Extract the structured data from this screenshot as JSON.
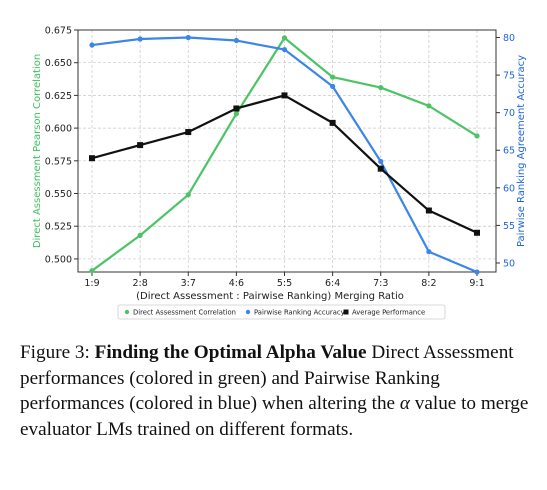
{
  "chart_data": {
    "type": "line",
    "categories": [
      "1:9",
      "2:8",
      "3:7",
      "4:6",
      "5:5",
      "6:4",
      "7:3",
      "8:2",
      "9:1"
    ],
    "xlabel": "(Direct Assessment : Pairwise Ranking) Merging Ratio",
    "ylabel_left": "Direct Assessment Pearson Correlation",
    "ylabel_right": "Pairwise Ranking Agreement Accuracy",
    "ylim_left": [
      0.49,
      0.675
    ],
    "ylim_right": [
      48.8,
      81.0
    ],
    "yticks_left": [
      "0.500",
      "0.525",
      "0.550",
      "0.575",
      "0.600",
      "0.625",
      "0.650",
      "0.675"
    ],
    "yticks_right": [
      "50",
      "55",
      "60",
      "65",
      "70",
      "75",
      "80"
    ],
    "grid": true,
    "legend_position": "bottom-center",
    "series": [
      {
        "name": "Direct Assessment Correlation",
        "axis": "left",
        "color": "#4cc466",
        "marker": "circle",
        "values": [
          0.491,
          0.518,
          0.549,
          0.611,
          0.669,
          0.639,
          0.631,
          0.617,
          0.594
        ]
      },
      {
        "name": "Pairwise Ranking Accuracy",
        "axis": "right",
        "color": "#3b86e6",
        "marker": "circle",
        "values": [
          79.0,
          79.8,
          80.0,
          79.6,
          78.4,
          73.5,
          63.5,
          51.5,
          48.8
        ]
      },
      {
        "name": "Average Performance",
        "axis": "left",
        "color": "#111111",
        "marker": "square",
        "values": [
          0.577,
          0.587,
          0.597,
          0.615,
          0.625,
          0.604,
          0.569,
          0.537,
          0.52
        ]
      }
    ]
  },
  "caption": {
    "label": "Figure 3:",
    "title": "Finding the Optimal Alpha Value",
    "text_before_alpha": " Direct Assessment performances (colored in green) and Pairwise Ranking performances (colored in blue) when altering the ",
    "alpha_symbol": "α",
    "text_after_alpha": " value to merge evaluator LMs trained on different formats."
  }
}
